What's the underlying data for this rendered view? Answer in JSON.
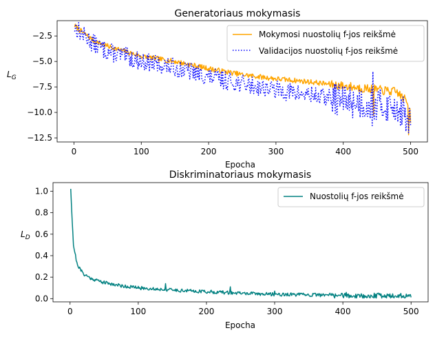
{
  "chart_data": [
    {
      "type": "line",
      "title": "Generatoriaus mokymasis",
      "xlabel": "Epocha",
      "ylabel": "L_G",
      "ylabel_main": "L",
      "ylabel_sub": "G",
      "xlim": [
        -25,
        525
      ],
      "ylim": [
        -12.9,
        -1.0
      ],
      "xticks": [
        0,
        100,
        200,
        300,
        400,
        500
      ],
      "xtick_labels": [
        "0",
        "100",
        "200",
        "300",
        "400",
        "500"
      ],
      "yticks": [
        -2.5,
        -5.0,
        -7.5,
        -10.0,
        -12.5
      ],
      "ytick_labels": [
        "−2.5",
        "−5.0",
        "−7.5",
        "−10.0",
        "−12.5"
      ],
      "legend_position": "top-right",
      "grid": false,
      "series": [
        {
          "name": "Mokymosi nuostolių f-jos reikšmė",
          "color": "#FFA500",
          "style": "solid",
          "anchors_x": [
            1,
            10,
            30,
            50,
            100,
            150,
            200,
            250,
            300,
            350,
            400,
            440,
            480,
            495,
            500
          ],
          "anchors_y": [
            -1.5,
            -2.0,
            -3.0,
            -3.5,
            -4.5,
            -5.0,
            -5.7,
            -6.3,
            -6.7,
            -7.0,
            -7.4,
            -7.7,
            -8.0,
            -9.0,
            -11.0
          ],
          "noise": 0.25,
          "seed": 7,
          "spikes": [
            [
              445,
              -10.3
            ],
            [
              497,
              -12.2
            ],
            [
              499,
              -9.6
            ]
          ]
        },
        {
          "name": "Validacijos nuostolių f-jos reikšmė",
          "color": "#0000FF",
          "style": "dotted",
          "anchors_x": [
            1,
            10,
            30,
            50,
            100,
            150,
            200,
            250,
            300,
            350,
            400,
            440,
            480,
            495,
            500
          ],
          "anchors_y": [
            -1.6,
            -2.2,
            -3.3,
            -4.0,
            -5.0,
            -5.6,
            -6.5,
            -7.2,
            -7.8,
            -8.3,
            -8.8,
            -9.2,
            -9.5,
            -10.5,
            -11.0
          ],
          "noise": 0.9,
          "seed": 13,
          "spikes": [
            [
              443,
              -11.3
            ],
            [
              444,
              -6.0
            ],
            [
              482,
              -9.8
            ],
            [
              497,
              -12.0
            ]
          ]
        }
      ]
    },
    {
      "type": "line",
      "title": "Diskriminatoriaus mokymasis",
      "xlabel": "Epocha",
      "ylabel": "L_D",
      "ylabel_main": "L",
      "ylabel_sub": "D",
      "xlim": [
        -25,
        525
      ],
      "ylim": [
        -0.03,
        1.08
      ],
      "xticks": [
        0,
        100,
        200,
        300,
        400,
        500
      ],
      "xtick_labels": [
        "0",
        "100",
        "200",
        "300",
        "400",
        "500"
      ],
      "yticks": [
        0.0,
        0.2,
        0.4,
        0.6,
        0.8,
        1.0
      ],
      "ytick_labels": [
        "0.0",
        "0.2",
        "0.4",
        "0.6",
        "0.8",
        "1.0"
      ],
      "legend_position": "top-right",
      "grid": false,
      "series": [
        {
          "name": "Nuostolių f-jos reikšmė",
          "color": "#008080",
          "style": "solid",
          "anchors_x": [
            1,
            3,
            5,
            10,
            15,
            20,
            30,
            50,
            75,
            100,
            150,
            200,
            250,
            300,
            400,
            500
          ],
          "anchors_y": [
            1.03,
            0.75,
            0.5,
            0.33,
            0.27,
            0.23,
            0.19,
            0.15,
            0.12,
            0.1,
            0.08,
            0.065,
            0.05,
            0.04,
            0.03,
            0.02
          ],
          "noise": 0.016,
          "seed": 21,
          "spikes": [
            [
              140,
              0.14
            ],
            [
              235,
              0.11
            ],
            [
              300,
              0.07
            ]
          ]
        }
      ]
    }
  ]
}
